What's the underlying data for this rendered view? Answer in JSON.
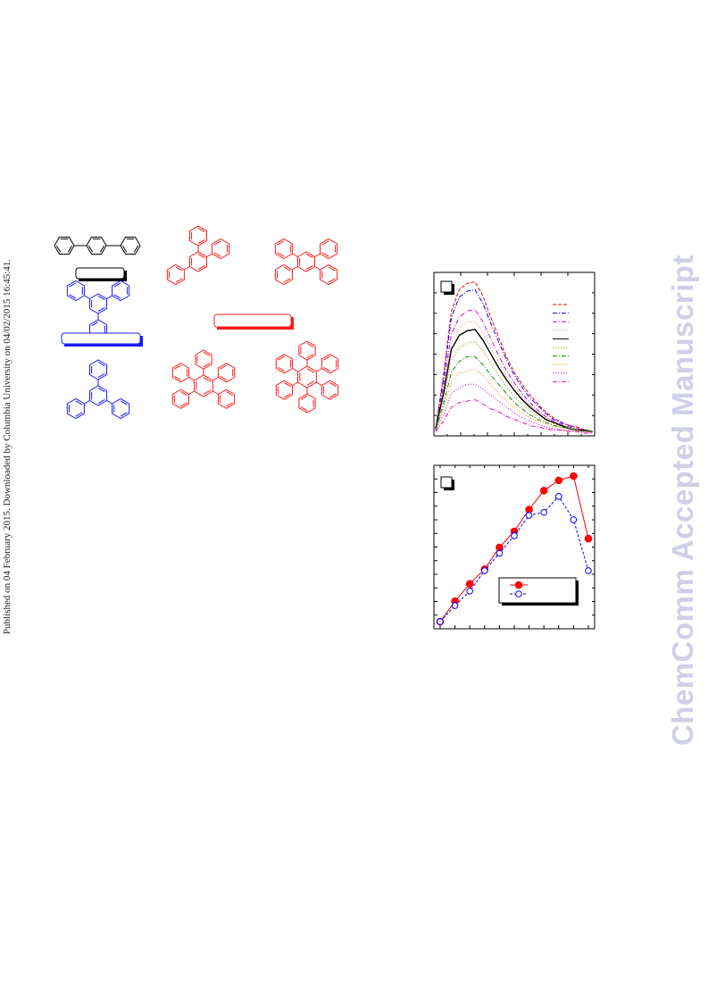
{
  "sidebar": {
    "published_text": "Published on 04 February 2015. Downloaded by Columbia University on 04/02/2015 16:45:41."
  },
  "watermark": {
    "text": "ChemComm Accepted Manuscript"
  },
  "colors": {
    "black_group": "#000000",
    "blue_group": "#1a1aff",
    "red_group": "#ff1a1a",
    "watermark": "#cfcfe6"
  },
  "structures": [
    {
      "name": "p-terphenyl",
      "color": "black"
    },
    {
      "name": "1,3,5-triphenylbenzene (top)",
      "color": "blue"
    },
    {
      "name": "1,3,5-triphenylbenzene",
      "color": "blue"
    },
    {
      "name": "1,2,4-triphenylbenzene",
      "color": "red"
    },
    {
      "name": "1,2,4,5-tetraphenylbenzene",
      "color": "red"
    },
    {
      "name": "pentaphenylbenzene",
      "color": "red"
    },
    {
      "name": "hexaphenylbenzene",
      "color": "red"
    }
  ],
  "chart_data": [
    {
      "type": "line",
      "panel": "top",
      "xlabel": "",
      "ylabel": "",
      "legend": "top-right",
      "x": [
        0,
        1,
        2,
        3,
        4,
        5,
        6,
        7,
        8,
        9,
        10,
        11,
        12,
        13,
        14,
        15,
        16,
        17,
        18,
        19,
        20
      ],
      "series": [
        {
          "color": "#ff0000",
          "style": "dash",
          "values": [
            0.03,
            0.38,
            0.8,
            0.94,
            0.98,
            0.99,
            0.9,
            0.76,
            0.63,
            0.5,
            0.4,
            0.32,
            0.25,
            0.19,
            0.14,
            0.1,
            0.07,
            0.05,
            0.04,
            0.02,
            0.01
          ]
        },
        {
          "color": "#0000ff",
          "style": "dashdot",
          "values": [
            0.03,
            0.36,
            0.76,
            0.89,
            0.93,
            0.94,
            0.85,
            0.72,
            0.6,
            0.48,
            0.38,
            0.3,
            0.23,
            0.18,
            0.13,
            0.09,
            0.07,
            0.05,
            0.03,
            0.02,
            0.01
          ]
        },
        {
          "color": "#cc00cc",
          "style": "dashdot",
          "values": [
            0.03,
            0.31,
            0.65,
            0.76,
            0.8,
            0.81,
            0.73,
            0.62,
            0.51,
            0.41,
            0.33,
            0.26,
            0.2,
            0.15,
            0.11,
            0.08,
            0.06,
            0.04,
            0.03,
            0.02,
            0.01
          ]
        },
        {
          "color": "#cc9966",
          "style": "dot",
          "values": [
            0.03,
            0.28,
            0.59,
            0.69,
            0.73,
            0.73,
            0.66,
            0.56,
            0.47,
            0.37,
            0.3,
            0.23,
            0.18,
            0.14,
            0.1,
            0.07,
            0.05,
            0.04,
            0.03,
            0.02,
            0.01
          ]
        },
        {
          "color": "#000000",
          "style": "solid",
          "values": [
            0.03,
            0.26,
            0.55,
            0.64,
            0.67,
            0.68,
            0.61,
            0.52,
            0.43,
            0.35,
            0.28,
            0.22,
            0.17,
            0.13,
            0.09,
            0.07,
            0.05,
            0.03,
            0.02,
            0.02,
            0.01
          ]
        },
        {
          "color": "#aa8800",
          "style": "dot",
          "values": [
            0.02,
            0.23,
            0.48,
            0.56,
            0.59,
            0.6,
            0.54,
            0.46,
            0.38,
            0.3,
            0.24,
            0.19,
            0.15,
            0.11,
            0.08,
            0.06,
            0.04,
            0.03,
            0.02,
            0.01,
            0.01
          ]
        },
        {
          "color": "#008800",
          "style": "dashdot",
          "values": [
            0.02,
            0.19,
            0.4,
            0.47,
            0.5,
            0.5,
            0.45,
            0.38,
            0.32,
            0.26,
            0.2,
            0.16,
            0.12,
            0.09,
            0.07,
            0.05,
            0.04,
            0.03,
            0.02,
            0.01,
            0.01
          ]
        },
        {
          "color": "#ff8800",
          "style": "dot",
          "values": [
            0.02,
            0.16,
            0.33,
            0.39,
            0.41,
            0.42,
            0.38,
            0.32,
            0.26,
            0.21,
            0.17,
            0.13,
            0.1,
            0.08,
            0.06,
            0.04,
            0.03,
            0.02,
            0.02,
            0.01,
            0.01
          ]
        },
        {
          "color": "#aa00ff",
          "style": "dot",
          "values": [
            0.02,
            0.12,
            0.26,
            0.3,
            0.32,
            0.32,
            0.29,
            0.25,
            0.21,
            0.17,
            0.13,
            0.1,
            0.08,
            0.06,
            0.04,
            0.03,
            0.02,
            0.02,
            0.01,
            0.01,
            0.0
          ]
        },
        {
          "color": "#ff00aa",
          "style": "dashdot",
          "values": [
            0.01,
            0.08,
            0.17,
            0.2,
            0.21,
            0.22,
            0.19,
            0.16,
            0.14,
            0.11,
            0.09,
            0.07,
            0.05,
            0.04,
            0.03,
            0.02,
            0.02,
            0.01,
            0.01,
            0.0,
            0.0
          ]
        }
      ]
    },
    {
      "type": "line",
      "panel": "bottom",
      "xlabel": "",
      "ylabel": "",
      "legend": "bottom-right",
      "x": [
        0,
        1,
        2,
        3,
        4,
        5,
        6,
        7,
        8,
        9,
        10
      ],
      "series": [
        {
          "color": "#ff0000",
          "marker": "filled-circle",
          "style": "solid",
          "values": [
            0.0,
            0.14,
            0.26,
            0.36,
            0.51,
            0.62,
            0.77,
            0.9,
            0.97,
            1.0,
            0.57
          ]
        },
        {
          "color": "#0000ff",
          "marker": "open-circle",
          "style": "dash",
          "values": [
            0.0,
            0.11,
            0.21,
            0.35,
            0.47,
            0.59,
            0.73,
            0.75,
            0.86,
            0.7,
            0.35
          ]
        }
      ]
    }
  ]
}
